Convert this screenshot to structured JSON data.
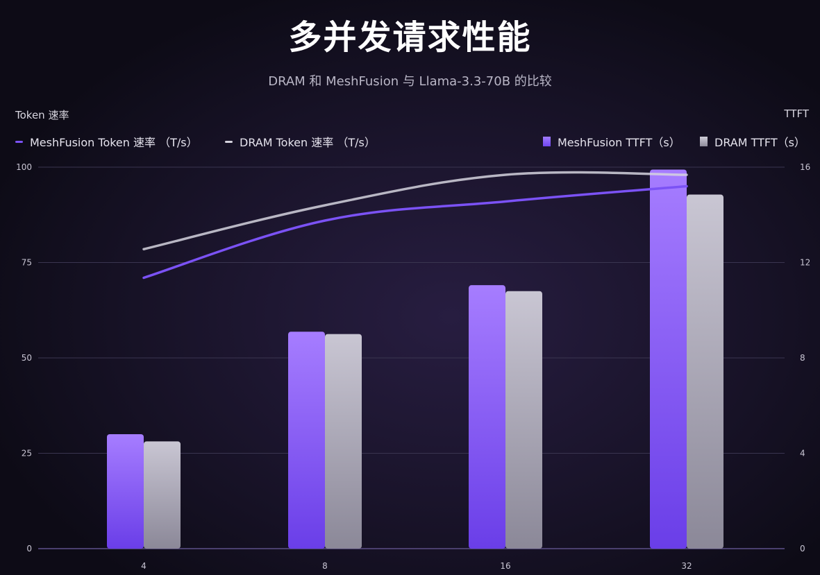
{
  "title": "多并发请求性能",
  "subtitle": "DRAM 和 MeshFusion 与 Llama-3.3-70B 的比较",
  "chart_data": {
    "type": "bar",
    "categories": [
      "4",
      "8",
      "16",
      "32"
    ],
    "left_axis": {
      "label": "Token 速率",
      "ylim": [
        0,
        100
      ],
      "ticks": [
        "0",
        "25",
        "50",
        "75",
        "100"
      ]
    },
    "right_axis": {
      "label": "TTFT",
      "ylim": [
        0,
        16
      ],
      "ticks": [
        "0",
        "4",
        "8",
        "12",
        "16"
      ]
    },
    "series": [
      {
        "name": "MeshFusion Token 速率 （T/s）",
        "kind": "line",
        "axis": "left",
        "color": "#7b52f5",
        "values": [
          71,
          86,
          91,
          95
        ]
      },
      {
        "name": "DRAM Token 速率 （T/s）",
        "kind": "line",
        "axis": "left",
        "color": "#d5d3de",
        "values": [
          78.5,
          90,
          98,
          98
        ]
      },
      {
        "name": "MeshFusion TTFT（s）",
        "kind": "bar",
        "axis": "right",
        "color": "#8f63ff",
        "values": [
          4.8,
          9.1,
          11.05,
          15.9
        ]
      },
      {
        "name": "DRAM TTFT（s）",
        "kind": "bar",
        "axis": "right",
        "color": "#b4b1c0",
        "values": [
          4.5,
          9.0,
          10.8,
          14.85
        ]
      }
    ],
    "grid": true,
    "legend_position": "top"
  }
}
